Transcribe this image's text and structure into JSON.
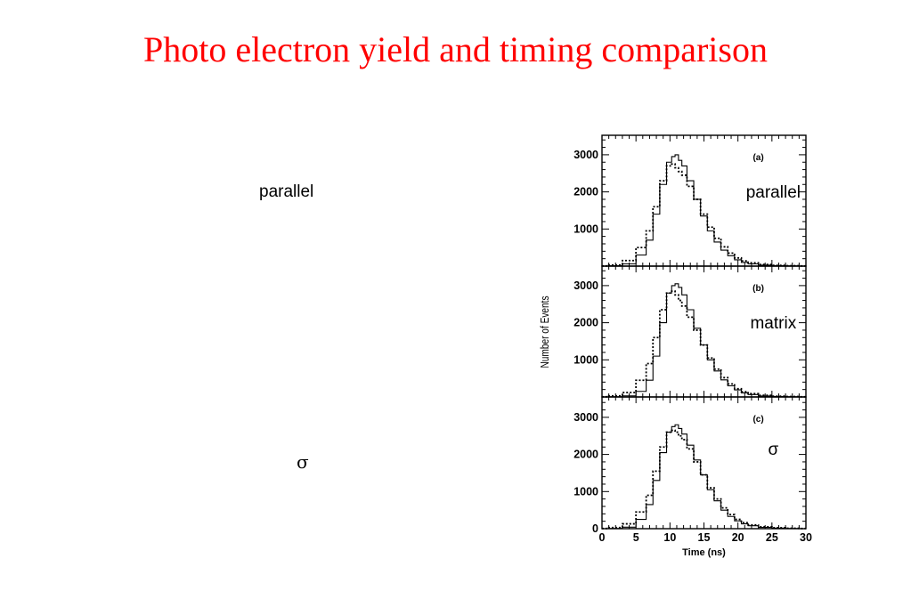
{
  "slide": {
    "title": "Photo electron yield and timing comparison",
    "left_labels": [
      "parallel",
      "σ"
    ]
  },
  "colors": {
    "title": "#ff0000",
    "axis": "#000000"
  },
  "chart_data": {
    "type": "line",
    "xlabel": "Time (ns)",
    "ylabel": "Number of Events",
    "xlim": [
      0,
      30
    ],
    "ylim": [
      0,
      3500
    ],
    "x_ticks": [
      "0",
      "5",
      "10",
      "15",
      "20",
      "25",
      "30"
    ],
    "y_ticks_top": [
      "1000",
      "2000",
      "3000"
    ],
    "y_ticks_bottom": [
      "0",
      "1000",
      "2000",
      "3000"
    ],
    "x": [
      0,
      2,
      4,
      6,
      7,
      8,
      9,
      10,
      10.5,
      11,
      11.5,
      12,
      13,
      14,
      15,
      16,
      17,
      18,
      19,
      20,
      21,
      22,
      24,
      26,
      28,
      30
    ],
    "panels": [
      {
        "id": "(a)",
        "annotation": "parallel",
        "series": [
          {
            "style": "solid",
            "values": [
              0,
              10,
              60,
              300,
              700,
              1400,
              2200,
              2800,
              2950,
              3000,
              2850,
              2700,
              2300,
              1800,
              1350,
              950,
              650,
              430,
              280,
              170,
              100,
              60,
              25,
              10,
              5,
              0
            ]
          },
          {
            "style": "dotted",
            "values": [
              5,
              30,
              150,
              500,
              950,
              1600,
              2300,
              2700,
              2750,
              2650,
              2550,
              2450,
              2150,
              1800,
              1400,
              1050,
              750,
              520,
              350,
              220,
              140,
              90,
              45,
              20,
              10,
              5
            ]
          }
        ]
      },
      {
        "id": "(b)",
        "annotation": "matrix",
        "series": [
          {
            "style": "solid",
            "values": [
              0,
              5,
              30,
              150,
              450,
              1100,
              2000,
              2800,
              3000,
              3050,
              2950,
              2750,
              2350,
              1850,
              1400,
              1000,
              700,
              460,
              300,
              190,
              110,
              65,
              25,
              10,
              5,
              0
            ]
          },
          {
            "style": "dotted",
            "values": [
              5,
              30,
              120,
              450,
              900,
              1600,
              2350,
              2800,
              2850,
              2750,
              2600,
              2450,
              2150,
              1800,
              1400,
              1050,
              750,
              520,
              350,
              220,
              140,
              90,
              45,
              20,
              10,
              5
            ]
          }
        ]
      },
      {
        "id": "(c)",
        "annotation": "σ",
        "series": [
          {
            "style": "solid",
            "values": [
              0,
              5,
              40,
              250,
              650,
              1300,
              2050,
              2600,
              2750,
              2800,
              2700,
              2550,
              2250,
              1850,
              1450,
              1050,
              750,
              500,
              330,
              210,
              130,
              80,
              35,
              15,
              5,
              0
            ]
          },
          {
            "style": "dotted",
            "values": [
              5,
              30,
              130,
              450,
              900,
              1550,
              2200,
              2600,
              2650,
              2600,
              2500,
              2400,
              2150,
              1800,
              1450,
              1100,
              800,
              560,
              380,
              250,
              160,
              100,
              50,
              25,
              10,
              5
            ]
          }
        ]
      }
    ]
  }
}
